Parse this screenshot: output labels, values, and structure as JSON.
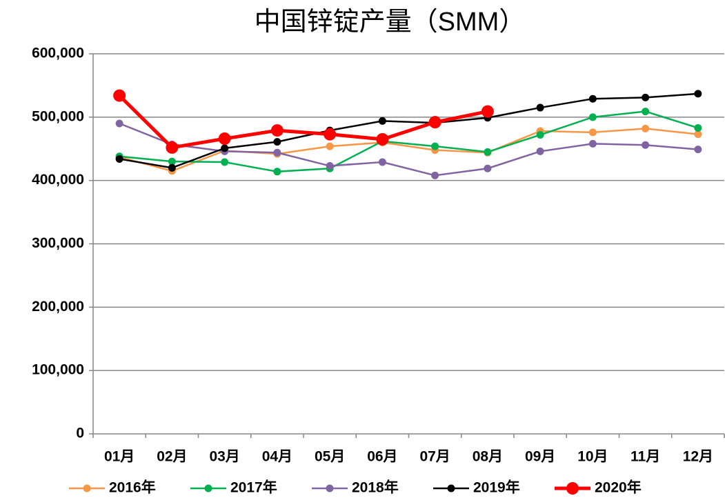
{
  "chart_data": {
    "type": "line",
    "title": "中国锌锭产量（SMM）",
    "categories": [
      "01月",
      "02月",
      "03月",
      "04月",
      "05月",
      "06月",
      "07月",
      "08月",
      "09月",
      "10月",
      "11月",
      "12月"
    ],
    "series": [
      {
        "name": "2016年",
        "color": "#f79646",
        "values": [
          437000,
          415000,
          447000,
          442000,
          454000,
          460000,
          448000,
          444000,
          478000,
          476000,
          482000,
          473000
        ]
      },
      {
        "name": "2017年",
        "color": "#00b050",
        "values": [
          438000,
          430000,
          429000,
          414000,
          419000,
          462000,
          454000,
          445000,
          472000,
          500000,
          509000,
          483000
        ]
      },
      {
        "name": "2018年",
        "color": "#8064a2",
        "values": [
          490000,
          457000,
          446000,
          444000,
          423000,
          429000,
          408000,
          419000,
          446000,
          458000,
          456000,
          449000
        ]
      },
      {
        "name": "2019年",
        "color": "#000000",
        "values": [
          434000,
          420000,
          451000,
          461000,
          479000,
          494000,
          491000,
          499000,
          515000,
          529000,
          531000,
          537000
        ]
      },
      {
        "name": "2020年",
        "color": "#ff0000",
        "values": [
          534000,
          452000,
          466000,
          479000,
          473000,
          465000,
          492000,
          509000,
          null,
          null,
          null,
          null
        ]
      }
    ],
    "ylim": [
      0,
      600000
    ],
    "yticks": [
      0,
      {
        "value": 100000,
        "label": "100,000"
      },
      {
        "value": 200000,
        "label": "200,000"
      },
      {
        "value": 300000,
        "label": "300,000"
      },
      {
        "value": 400000,
        "label": "400,000"
      },
      {
        "value": 500000,
        "label": "500,000"
      },
      {
        "value": 600000,
        "label": "600,000"
      }
    ],
    "grid": true,
    "legend": "bottom"
  }
}
